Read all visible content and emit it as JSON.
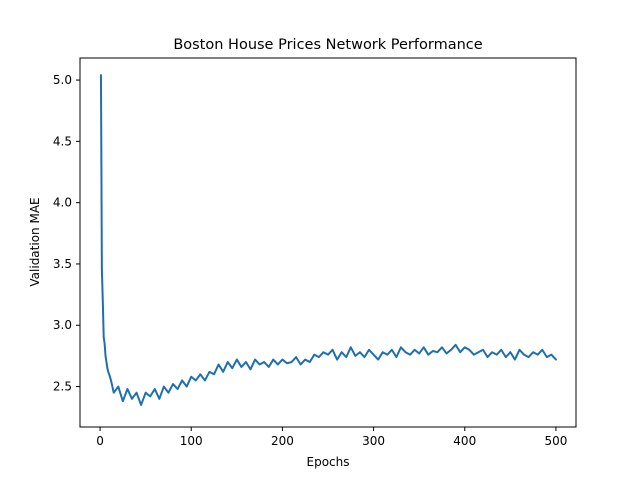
{
  "chart_data": {
    "type": "line",
    "title": "Boston House Prices Network Performance",
    "xlabel": "Epochs",
    "ylabel": "Validation MAE",
    "xlim": [
      -22,
      522
    ],
    "ylim": [
      2.17,
      5.18
    ],
    "xticks": [
      0,
      100,
      200,
      300,
      400,
      500
    ],
    "yticks": [
      2.5,
      3.0,
      3.5,
      4.0,
      4.5,
      5.0
    ],
    "xtick_labels": [
      "0",
      "100",
      "200",
      "300",
      "400",
      "500"
    ],
    "ytick_labels": [
      "2.5",
      "3.0",
      "3.5",
      "4.0",
      "4.5",
      "5.0"
    ],
    "grid": false,
    "line_color": "#1f6fb0",
    "series": [
      {
        "x": [
          1,
          2,
          3,
          4,
          5,
          6,
          7,
          8,
          9,
          10,
          12,
          15,
          20,
          25,
          30,
          35,
          40,
          45,
          50,
          55,
          60,
          65,
          70,
          75,
          80,
          85,
          90,
          95,
          100,
          105,
          110,
          115,
          120,
          125,
          130,
          135,
          140,
          145,
          150,
          155,
          160,
          165,
          170,
          175,
          180,
          185,
          190,
          195,
          200,
          205,
          210,
          215,
          220,
          225,
          230,
          235,
          240,
          245,
          250,
          255,
          260,
          265,
          270,
          275,
          280,
          285,
          290,
          295,
          300,
          305,
          310,
          315,
          320,
          325,
          330,
          335,
          340,
          345,
          350,
          355,
          360,
          365,
          370,
          375,
          380,
          385,
          390,
          395,
          400,
          405,
          410,
          415,
          420,
          425,
          430,
          435,
          440,
          445,
          450,
          455,
          460,
          465,
          470,
          475,
          480,
          485,
          490,
          495,
          500
        ],
        "y": [
          5.04,
          3.45,
          3.2,
          2.9,
          2.85,
          2.75,
          2.7,
          2.65,
          2.62,
          2.6,
          2.55,
          2.45,
          2.5,
          2.38,
          2.48,
          2.4,
          2.45,
          2.35,
          2.45,
          2.42,
          2.48,
          2.4,
          2.5,
          2.45,
          2.52,
          2.48,
          2.55,
          2.5,
          2.58,
          2.55,
          2.6,
          2.55,
          2.62,
          2.6,
          2.68,
          2.62,
          2.7,
          2.65,
          2.72,
          2.66,
          2.7,
          2.64,
          2.72,
          2.68,
          2.7,
          2.66,
          2.72,
          2.68,
          2.72,
          2.69,
          2.7,
          2.74,
          2.68,
          2.72,
          2.7,
          2.76,
          2.74,
          2.78,
          2.76,
          2.8,
          2.72,
          2.78,
          2.74,
          2.82,
          2.75,
          2.78,
          2.74,
          2.8,
          2.76,
          2.72,
          2.78,
          2.76,
          2.8,
          2.74,
          2.82,
          2.78,
          2.76,
          2.8,
          2.77,
          2.82,
          2.76,
          2.79,
          2.78,
          2.82,
          2.77,
          2.8,
          2.84,
          2.78,
          2.82,
          2.8,
          2.76,
          2.78,
          2.8,
          2.74,
          2.78,
          2.76,
          2.8,
          2.74,
          2.78,
          2.72,
          2.8,
          2.76,
          2.74,
          2.78,
          2.76,
          2.8,
          2.74,
          2.76,
          2.72
        ]
      }
    ]
  }
}
